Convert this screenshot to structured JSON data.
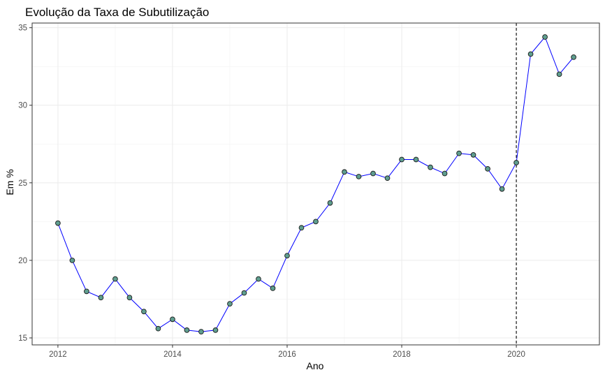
{
  "chart_data": {
    "type": "line",
    "title": "Evolução da Taxa de Subutilização",
    "xlabel": "Ano",
    "ylabel": "Em %",
    "xlim": [
      2011.55,
      2021.45
    ],
    "ylim": [
      14.55,
      35.3
    ],
    "x_ticks": [
      2012,
      2014,
      2016,
      2018,
      2020
    ],
    "y_ticks": [
      15,
      20,
      25,
      30,
      35
    ],
    "grid": true,
    "vline": {
      "x": 2020,
      "style": "dashed",
      "color": "#000000"
    },
    "series": [
      {
        "line_color": "#0000ff",
        "point_fill": "#5f9e8f",
        "point_stroke": "#1a1a1a",
        "x": [
          2012,
          2012.25,
          2012.5,
          2012.75,
          2013,
          2013.25,
          2013.5,
          2013.75,
          2014,
          2014.25,
          2014.5,
          2014.75,
          2015,
          2015.25,
          2015.5,
          2015.75,
          2016,
          2016.25,
          2016.5,
          2016.75,
          2017,
          2017.25,
          2017.5,
          2017.75,
          2018,
          2018.25,
          2018.5,
          2018.75,
          2019,
          2019.25,
          2019.5,
          2019.75,
          2020,
          2020.25,
          2020.5,
          2020.75,
          2021
        ],
        "y": [
          22.4,
          20.0,
          18.0,
          17.6,
          18.8,
          17.6,
          16.7,
          15.6,
          16.2,
          15.5,
          15.4,
          15.5,
          17.2,
          17.9,
          18.8,
          18.2,
          20.3,
          22.1,
          22.5,
          23.7,
          25.7,
          25.4,
          25.6,
          25.3,
          26.5,
          26.5,
          26.0,
          25.6,
          26.9,
          26.8,
          25.9,
          24.6,
          26.3,
          33.3,
          34.4,
          32.0,
          33.1
        ]
      }
    ]
  }
}
